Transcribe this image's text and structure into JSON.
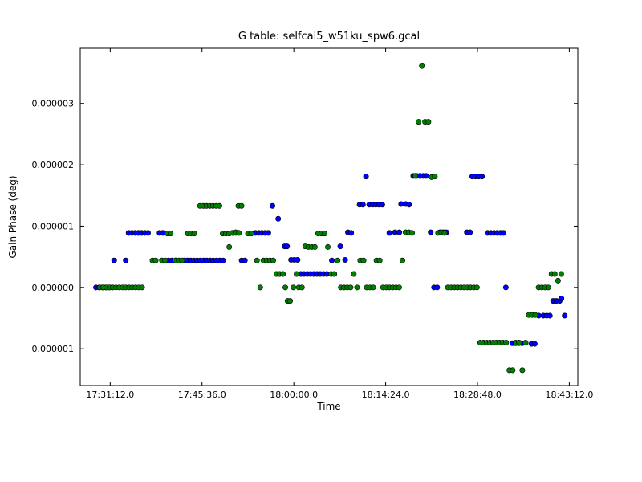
{
  "chart_data": {
    "type": "scatter",
    "title": "G table: selfcal5_w51ku_spw6.gcal",
    "xlabel": "Time",
    "ylabel": "Gain Phase (deg)",
    "x_unit": "HH:MM:SS",
    "xlim": [
      "17:26:30",
      "18:44:32"
    ],
    "ylim": [
      -1.6e-06,
      3.9e-06
    ],
    "x_ticks": [
      "17:31:12.0",
      "17:45:36.0",
      "18:00:00.0",
      "18:14:24.0",
      "18:28:48.0",
      "18:43:12.0"
    ],
    "y_ticks": [
      -1e-06,
      0.0,
      1e-06,
      2e-06,
      3e-06
    ],
    "y_tick_labels": [
      "−0.000001",
      "0.000000",
      "0.000001",
      "0.000002",
      "0.000003"
    ],
    "grid": false,
    "legend": "none",
    "series": [
      {
        "color": "#0000ff",
        "points": [
          [
            "17:28:58",
            0.0
          ],
          [
            "17:29:29",
            0.0
          ],
          [
            "17:30:00",
            0.0
          ],
          [
            "17:30:30",
            0.0
          ],
          [
            "17:31:01",
            0.0
          ],
          [
            "17:31:31",
            0.0
          ],
          [
            "17:31:49",
            4.4e-07
          ],
          [
            "17:33:38",
            4.4e-07
          ],
          [
            "17:34:05",
            8.9e-07
          ],
          [
            "17:34:36",
            8.9e-07
          ],
          [
            "17:35:06",
            8.9e-07
          ],
          [
            "17:35:36",
            8.9e-07
          ],
          [
            "17:36:07",
            8.9e-07
          ],
          [
            "17:36:37",
            8.9e-07
          ],
          [
            "17:37:08",
            8.9e-07
          ],
          [
            "17:38:56",
            8.9e-07
          ],
          [
            "17:39:27",
            8.9e-07
          ],
          [
            "17:40:20",
            4.4e-07
          ],
          [
            "17:40:51",
            4.4e-07
          ],
          [
            "17:41:27",
            4.4e-07
          ],
          [
            "17:42:48",
            4.4e-07
          ],
          [
            "17:43:18",
            4.4e-07
          ],
          [
            "17:43:49",
            4.4e-07
          ],
          [
            "17:44:19",
            4.4e-07
          ],
          [
            "17:44:50",
            4.4e-07
          ],
          [
            "17:45:20",
            4.4e-07
          ],
          [
            "17:45:51",
            4.4e-07
          ],
          [
            "17:46:21",
            4.4e-07
          ],
          [
            "17:46:52",
            4.4e-07
          ],
          [
            "17:47:22",
            4.4e-07
          ],
          [
            "17:47:53",
            4.4e-07
          ],
          [
            "17:48:23",
            4.4e-07
          ],
          [
            "17:48:54",
            4.4e-07
          ],
          [
            "17:50:25",
            8.9e-07
          ],
          [
            "17:50:55",
            8.9e-07
          ],
          [
            "17:51:49",
            4.4e-07
          ],
          [
            "17:52:19",
            4.4e-07
          ],
          [
            "17:53:58",
            8.9e-07
          ],
          [
            "17:54:29",
            8.9e-07
          ],
          [
            "17:54:59",
            8.9e-07
          ],
          [
            "17:55:30",
            8.9e-07
          ],
          [
            "17:56:00",
            8.9e-07
          ],
          [
            "17:56:39",
            1.33e-06
          ],
          [
            "17:57:33",
            1.12e-06
          ],
          [
            "17:58:34",
            6.7e-07
          ],
          [
            "17:58:56",
            6.7e-07
          ],
          [
            "17:59:34",
            4.5e-07
          ],
          [
            "18:00:05",
            4.5e-07
          ],
          [
            "18:00:35",
            4.5e-07
          ],
          [
            "18:01:06",
            2.2e-07
          ],
          [
            "18:01:36",
            2.2e-07
          ],
          [
            "18:02:07",
            2.2e-07
          ],
          [
            "18:02:37",
            2.2e-07
          ],
          [
            "18:03:08",
            2.2e-07
          ],
          [
            "18:03:38",
            2.2e-07
          ],
          [
            "18:04:09",
            2.2e-07
          ],
          [
            "18:04:39",
            2.2e-07
          ],
          [
            "18:05:10",
            2.2e-07
          ],
          [
            "18:05:58",
            4.4e-07
          ],
          [
            "18:07:17",
            6.7e-07
          ],
          [
            "18:08:03",
            4.5e-07
          ],
          [
            "18:08:29",
            9e-07
          ],
          [
            "18:09:00",
            8.9e-07
          ],
          [
            "18:11:19",
            1.81e-06
          ],
          [
            "18:10:19",
            1.35e-06
          ],
          [
            "18:10:50",
            1.35e-06
          ],
          [
            "18:11:50",
            1.35e-06
          ],
          [
            "18:12:21",
            1.35e-06
          ],
          [
            "18:12:51",
            1.35e-06
          ],
          [
            "18:13:22",
            1.35e-06
          ],
          [
            "18:13:52",
            1.35e-06
          ],
          [
            "18:14:59",
            8.9e-07
          ],
          [
            "18:15:52",
            9e-07
          ],
          [
            "18:16:33",
            9e-07
          ],
          [
            "18:16:50",
            1.36e-06
          ],
          [
            "18:17:33",
            1.36e-06
          ],
          [
            "18:18:04",
            1.35e-06
          ],
          [
            "18:18:44",
            1.82e-06
          ],
          [
            "18:19:15",
            1.82e-06
          ],
          [
            "18:19:45",
            1.82e-06
          ],
          [
            "18:20:16",
            1.82e-06
          ],
          [
            "18:20:46",
            1.82e-06
          ],
          [
            "18:21:28",
            9e-07
          ],
          [
            "18:21:59",
            0.0
          ],
          [
            "18:22:29",
            0.0
          ],
          [
            "18:22:55",
            9e-07
          ],
          [
            "18:23:26",
            9e-07
          ],
          [
            "18:23:56",
            9e-07
          ],
          [
            "18:25:40",
            0.0
          ],
          [
            "18:27:08",
            9e-07
          ],
          [
            "18:27:38",
            9e-07
          ],
          [
            "18:27:59",
            1.81e-06
          ],
          [
            "18:28:29",
            1.81e-06
          ],
          [
            "18:29:00",
            1.81e-06
          ],
          [
            "18:29:30",
            1.81e-06
          ],
          [
            "18:30:22",
            8.9e-07
          ],
          [
            "18:30:52",
            8.9e-07
          ],
          [
            "18:31:23",
            8.9e-07
          ],
          [
            "18:31:53",
            8.9e-07
          ],
          [
            "18:32:24",
            8.9e-07
          ],
          [
            "18:32:54",
            8.9e-07
          ],
          [
            "18:33:15",
            0.0
          ],
          [
            "18:34:16",
            -9.1e-07
          ],
          [
            "18:34:47",
            -9.1e-07
          ],
          [
            "18:35:17",
            -9.1e-07
          ],
          [
            "18:35:48",
            -9.1e-07
          ],
          [
            "18:37:16",
            -9.2e-07
          ],
          [
            "18:37:47",
            -9.2e-07
          ],
          [
            "18:38:24",
            -4.6e-07
          ],
          [
            "18:39:08",
            -4.6e-07
          ],
          [
            "18:39:39",
            -4.6e-07
          ],
          [
            "18:40:09",
            -4.6e-07
          ],
          [
            "18:40:40",
            -2.2e-07
          ],
          [
            "18:41:10",
            -2.2e-07
          ],
          [
            "18:41:41",
            -2.2e-07
          ],
          [
            "18:41:58",
            -1.8e-07
          ],
          [
            "18:42:29",
            -4.6e-07
          ]
        ]
      },
      {
        "color": "#008000",
        "points": [
          [
            "17:29:35",
            0.0
          ],
          [
            "17:30:06",
            0.0
          ],
          [
            "17:30:36",
            0.0
          ],
          [
            "17:31:07",
            0.0
          ],
          [
            "17:31:37",
            0.0
          ],
          [
            "17:32:08",
            0.0
          ],
          [
            "17:32:38",
            0.0
          ],
          [
            "17:33:09",
            0.0
          ],
          [
            "17:33:39",
            0.0
          ],
          [
            "17:34:10",
            0.0
          ],
          [
            "17:34:40",
            0.0
          ],
          [
            "17:35:11",
            0.0
          ],
          [
            "17:35:41",
            0.0
          ],
          [
            "17:36:12",
            0.0
          ],
          [
            "17:37:50",
            4.4e-07
          ],
          [
            "17:38:20",
            4.4e-07
          ],
          [
            "17:39:19",
            4.4e-07
          ],
          [
            "17:39:49",
            4.4e-07
          ],
          [
            "17:40:10",
            8.8e-07
          ],
          [
            "17:40:41",
            8.8e-07
          ],
          [
            "17:41:27",
            4.4e-07
          ],
          [
            "17:41:58",
            4.4e-07
          ],
          [
            "17:42:28",
            4.4e-07
          ],
          [
            "17:43:22",
            8.8e-07
          ],
          [
            "17:43:53",
            8.8e-07
          ],
          [
            "17:44:23",
            8.8e-07
          ],
          [
            "17:45:17",
            1.33e-06
          ],
          [
            "17:45:48",
            1.33e-06
          ],
          [
            "17:46:18",
            1.33e-06
          ],
          [
            "17:46:49",
            1.33e-06
          ],
          [
            "17:47:19",
            1.33e-06
          ],
          [
            "17:47:50",
            1.33e-06
          ],
          [
            "17:48:20",
            1.33e-06
          ],
          [
            "17:48:51",
            8.8e-07
          ],
          [
            "17:49:21",
            8.8e-07
          ],
          [
            "17:49:52",
            8.8e-07
          ],
          [
            "17:49:52",
            6.6e-07
          ],
          [
            "17:50:22",
            8.9e-07
          ],
          [
            "17:50:53",
            9e-07
          ],
          [
            "17:51:23",
            8.9e-07
          ],
          [
            "17:51:18",
            1.33e-06
          ],
          [
            "17:51:48",
            1.33e-06
          ],
          [
            "17:52:49",
            8.8e-07
          ],
          [
            "17:53:20",
            8.8e-07
          ],
          [
            "17:54:13",
            4.4e-07
          ],
          [
            "17:54:44",
            0.0
          ],
          [
            "17:55:14",
            4.4e-07
          ],
          [
            "17:55:45",
            4.4e-07
          ],
          [
            "17:56:15",
            4.4e-07
          ],
          [
            "17:56:46",
            4.4e-07
          ],
          [
            "17:57:16",
            2.2e-07
          ],
          [
            "17:57:47",
            2.2e-07
          ],
          [
            "17:58:17",
            2.2e-07
          ],
          [
            "17:58:40",
            0.0
          ],
          [
            "17:59:01",
            -2.2e-07
          ],
          [
            "17:59:25",
            -2.2e-07
          ],
          [
            "17:59:56",
            0.0
          ],
          [
            "18:00:26",
            2.2e-07
          ],
          [
            "18:00:46",
            0.0
          ],
          [
            "18:01:16",
            0.0
          ],
          [
            "18:01:47",
            6.7e-07
          ],
          [
            "18:02:17",
            6.6e-07
          ],
          [
            "18:02:48",
            6.6e-07
          ],
          [
            "18:03:18",
            6.6e-07
          ],
          [
            "18:03:49",
            8.8e-07
          ],
          [
            "18:04:19",
            8.8e-07
          ],
          [
            "18:04:50",
            8.8e-07
          ],
          [
            "18:05:20",
            6.6e-07
          ],
          [
            "18:05:51",
            2.2e-07
          ],
          [
            "18:06:21",
            2.2e-07
          ],
          [
            "18:06:52",
            4.4e-07
          ],
          [
            "18:07:22",
            0.0
          ],
          [
            "18:07:53",
            0.0
          ],
          [
            "18:08:23",
            0.0
          ],
          [
            "18:08:54",
            0.0
          ],
          [
            "18:09:24",
            2.2e-07
          ],
          [
            "18:09:55",
            0.0
          ],
          [
            "18:10:25",
            4.4e-07
          ],
          [
            "18:10:56",
            4.4e-07
          ],
          [
            "18:11:26",
            0.0
          ],
          [
            "18:11:57",
            0.0
          ],
          [
            "18:12:27",
            0.0
          ],
          [
            "18:12:58",
            4.4e-07
          ],
          [
            "18:13:28",
            4.4e-07
          ],
          [
            "18:13:59",
            0.0
          ],
          [
            "18:14:29",
            0.0
          ],
          [
            "18:15:00",
            0.0
          ],
          [
            "18:15:30",
            0.0
          ],
          [
            "18:16:01",
            0.0
          ],
          [
            "18:16:31",
            0.0
          ],
          [
            "18:17:02",
            4.4e-07
          ],
          [
            "18:17:32",
            9e-07
          ],
          [
            "18:18:03",
            9e-07
          ],
          [
            "18:18:33",
            8.9e-07
          ],
          [
            "18:19:04",
            1.82e-06
          ],
          [
            "18:19:34",
            2.7e-06
          ],
          [
            "18:20:05",
            3.61e-06
          ],
          [
            "18:20:35",
            2.7e-06
          ],
          [
            "18:21:06",
            2.7e-06
          ],
          [
            "18:21:36",
            1.8e-06
          ],
          [
            "18:22:07",
            1.81e-06
          ],
          [
            "18:22:37",
            8.9e-07
          ],
          [
            "18:23:08",
            9e-07
          ],
          [
            "18:23:38",
            8.9e-07
          ],
          [
            "18:24:09",
            0.0
          ],
          [
            "18:24:39",
            0.0
          ],
          [
            "18:25:10",
            0.0
          ],
          [
            "18:25:40",
            0.0
          ],
          [
            "18:26:11",
            0.0
          ],
          [
            "18:26:41",
            0.0
          ],
          [
            "18:27:12",
            0.0
          ],
          [
            "18:27:42",
            0.0
          ],
          [
            "18:28:13",
            0.0
          ],
          [
            "18:28:43",
            0.0
          ],
          [
            "18:29:14",
            -9e-07
          ],
          [
            "18:29:44",
            -9e-07
          ],
          [
            "18:30:15",
            -9e-07
          ],
          [
            "18:30:45",
            -9e-07
          ],
          [
            "18:31:16",
            -9e-07
          ],
          [
            "18:31:46",
            -9e-07
          ],
          [
            "18:32:17",
            -9e-07
          ],
          [
            "18:32:47",
            -9e-07
          ],
          [
            "18:33:18",
            -9e-07
          ],
          [
            "18:33:48",
            -1.35e-06
          ],
          [
            "18:34:19",
            -1.35e-06
          ],
          [
            "18:34:49",
            -9e-07
          ],
          [
            "18:35:20",
            -9e-07
          ],
          [
            "18:35:50",
            -1.35e-06
          ],
          [
            "18:36:21",
            -9e-07
          ],
          [
            "18:36:51",
            -4.5e-07
          ],
          [
            "18:37:22",
            -4.5e-07
          ],
          [
            "18:37:52",
            -4.5e-07
          ],
          [
            "18:38:23",
            0.0
          ],
          [
            "18:38:53",
            0.0
          ],
          [
            "18:39:24",
            0.0
          ],
          [
            "18:39:54",
            0.0
          ],
          [
            "18:40:25",
            2.2e-07
          ],
          [
            "18:40:55",
            2.2e-07
          ],
          [
            "18:41:26",
            1.1e-07
          ],
          [
            "18:41:56",
            2.2e-07
          ]
        ]
      }
    ]
  }
}
